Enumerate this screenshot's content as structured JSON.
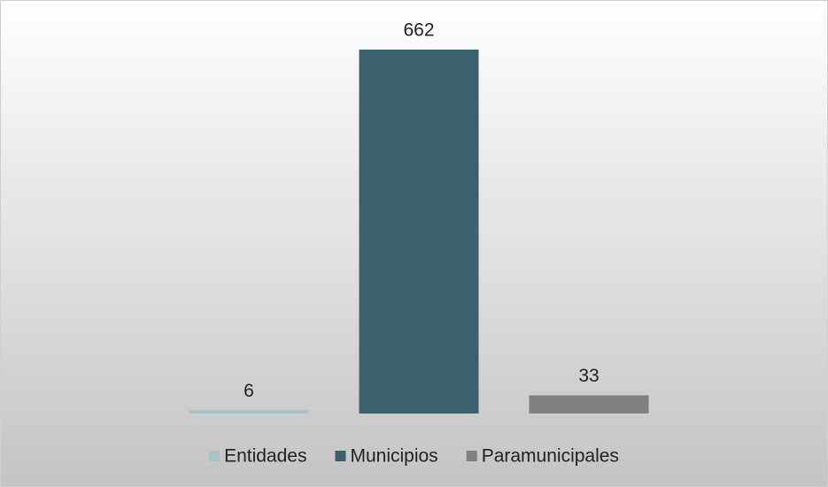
{
  "chart_data": {
    "type": "bar",
    "series": [
      {
        "name": "Entidades",
        "color": "#a9c4c7",
        "values": [
          6
        ]
      },
      {
        "name": "Municipios",
        "color": "#3b626c",
        "values": [
          662
        ]
      },
      {
        "name": "Paramunicipales",
        "color": "#7f7f7f",
        "values": [
          33
        ]
      }
    ],
    "legend": "bottom"
  }
}
